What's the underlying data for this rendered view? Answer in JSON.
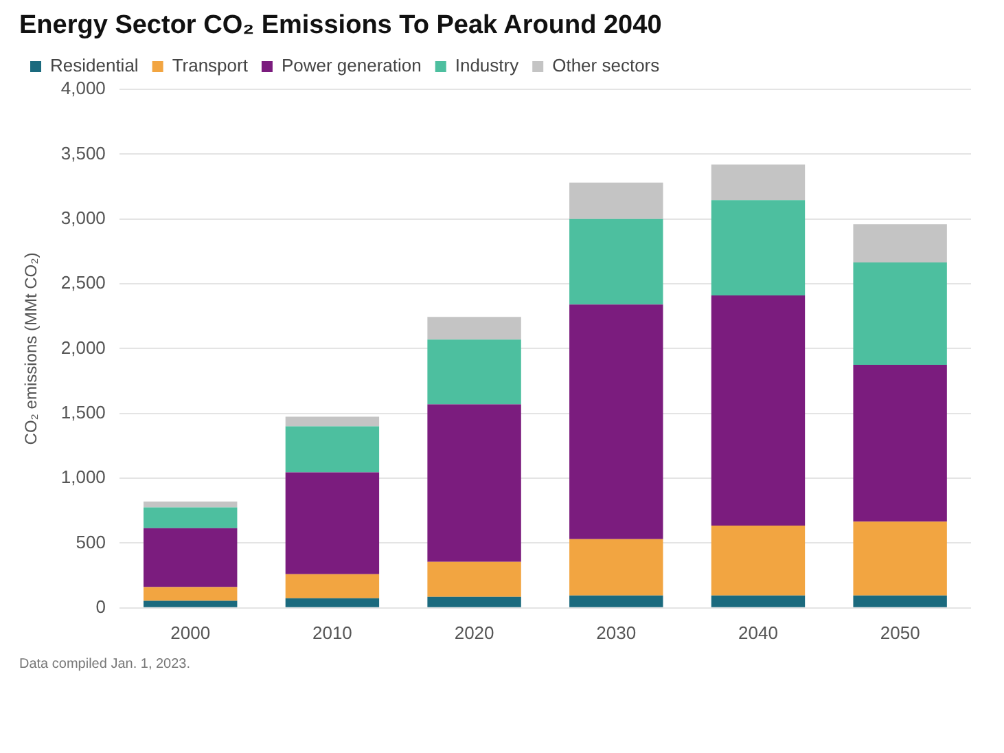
{
  "chart_data": {
    "type": "bar",
    "title": "Energy Sector CO₂ Emissions To Peak Around 2040",
    "ylabel": "CO₂ emissions (MMt CO₂)",
    "categories": [
      "2000",
      "2010",
      "2020",
      "2030",
      "2040",
      "2050"
    ],
    "stacked": true,
    "series": [
      {
        "name": "Residential",
        "color": "#1b6a7e",
        "values": [
          55,
          75,
          85,
          95,
          95,
          95
        ]
      },
      {
        "name": "Transport",
        "color": "#f2a541",
        "values": [
          105,
          185,
          270,
          435,
          540,
          570
        ]
      },
      {
        "name": "Power generation",
        "color": "#7b1c7e",
        "values": [
          455,
          785,
          1215,
          1810,
          1775,
          1210
        ]
      },
      {
        "name": "Industry",
        "color": "#4dbf9f",
        "values": [
          160,
          355,
          500,
          660,
          735,
          790
        ]
      },
      {
        "name": "Other sectors",
        "color": "#c4c4c4",
        "values": [
          45,
          75,
          175,
          280,
          275,
          295
        ]
      }
    ],
    "ylim": [
      0,
      4000
    ],
    "yticks": [
      {
        "value": 0,
        "label": "0"
      },
      {
        "value": 500,
        "label": "500"
      },
      {
        "value": 1000,
        "label": "1,000"
      },
      {
        "value": 1500,
        "label": "1,500"
      },
      {
        "value": 2000,
        "label": "2,000"
      },
      {
        "value": 2500,
        "label": "2,500"
      },
      {
        "value": 3000,
        "label": "3,000"
      },
      {
        "value": 3500,
        "label": "3,500"
      },
      {
        "value": 4000,
        "label": "4,000"
      }
    ],
    "grid": "y",
    "legend": "top",
    "annotations": [
      "Data compiled Jan. 1, 2023."
    ]
  }
}
